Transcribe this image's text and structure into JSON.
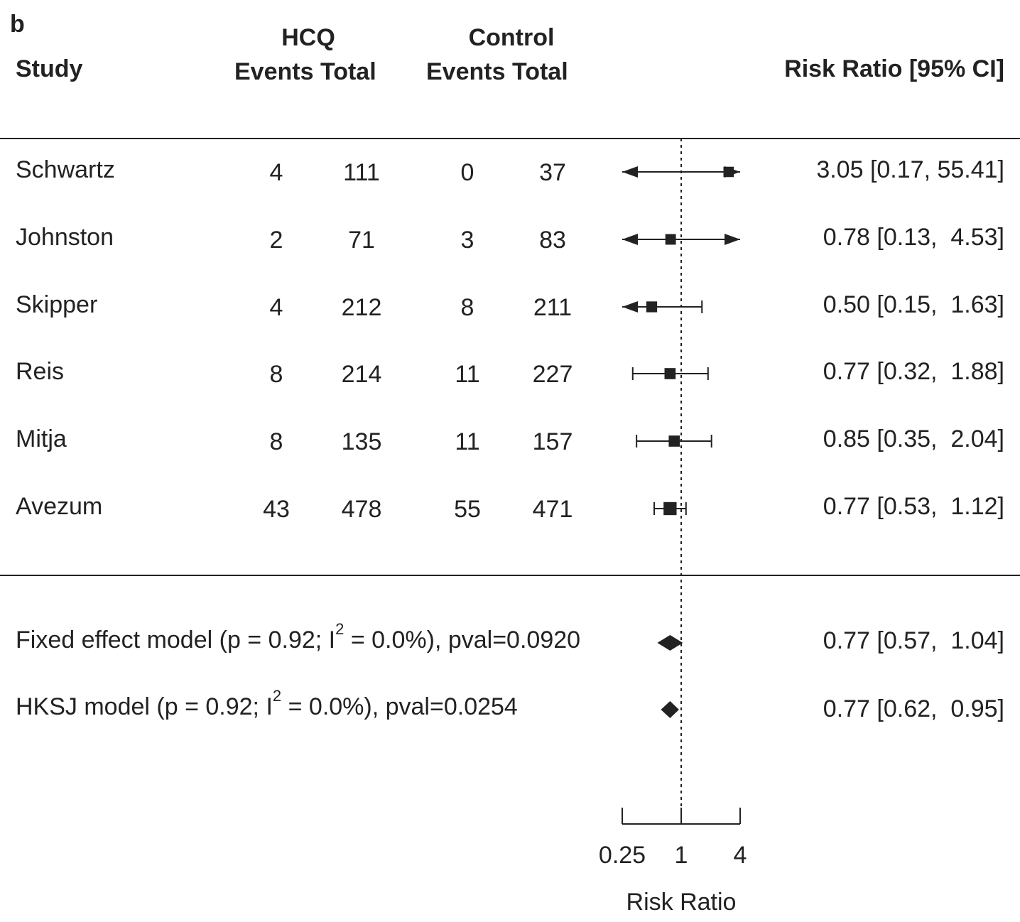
{
  "panel_label": "b",
  "headers": {
    "study": "Study",
    "hcq_group": "HCQ",
    "hcq_cols": "Events Total",
    "control_group": "Control",
    "control_cols": "Events Total",
    "effect": "Risk Ratio [95% CI]"
  },
  "rows": [
    {
      "study": "Schwartz",
      "hcq_events": "4",
      "hcq_total": "111",
      "ctrl_events": "0",
      "ctrl_total": "37",
      "ci_text": "3.05 [0.17, 55.41]"
    },
    {
      "study": "Johnston",
      "hcq_events": "2",
      "hcq_total": "71",
      "ctrl_events": "3",
      "ctrl_total": "83",
      "ci_text": "0.78 [0.13,  4.53]"
    },
    {
      "study": "Skipper",
      "hcq_events": "4",
      "hcq_total": "212",
      "ctrl_events": "8",
      "ctrl_total": "211",
      "ci_text": "0.50 [0.15,  1.63]"
    },
    {
      "study": "Reis",
      "hcq_events": "8",
      "hcq_total": "214",
      "ctrl_events": "11",
      "ctrl_total": "227",
      "ci_text": "0.77 [0.32,  1.88]"
    },
    {
      "study": "Mitja",
      "hcq_events": "8",
      "hcq_total": "135",
      "ctrl_events": "11",
      "ctrl_total": "157",
      "ci_text": "0.85 [0.35,  2.04]"
    },
    {
      "study": "Avezum",
      "hcq_events": "43",
      "hcq_total": "478",
      "ctrl_events": "55",
      "ctrl_total": "471",
      "ci_text": "0.77 [0.53,  1.12]"
    }
  ],
  "models": [
    {
      "label_a": "Fixed effect model (p = 0.92; I",
      "sup": "2",
      "label_b": " = 0.0%), pval=0.0920",
      "ci_text": "0.77 [0.57,  1.04]"
    },
    {
      "label_a": "HKSJ model (p = 0.92; I",
      "sup": "2",
      "label_b": " = 0.0%), pval=0.0254",
      "ci_text": "0.77 [0.62,  0.95]"
    }
  ],
  "chart_data": {
    "type": "forest",
    "x_scale": "log2",
    "xlim": [
      0.25,
      4
    ],
    "reference_line": 1,
    "xlabel": "Risk Ratio",
    "ticks": [
      "0.25",
      "1",
      "4"
    ],
    "tick_values": [
      0.25,
      1,
      4
    ],
    "studies": [
      {
        "name": "Schwartz",
        "rr": 3.05,
        "lower": 0.17,
        "upper": 55.41,
        "weight": 0.01
      },
      {
        "name": "Johnston",
        "rr": 0.78,
        "lower": 0.13,
        "upper": 4.53,
        "weight": 0.03
      },
      {
        "name": "Skipper",
        "rr": 0.5,
        "lower": 0.15,
        "upper": 1.63,
        "weight": 0.06
      },
      {
        "name": "Reis",
        "rr": 0.77,
        "lower": 0.32,
        "upper": 1.88,
        "weight": 0.1
      },
      {
        "name": "Mitja",
        "rr": 0.85,
        "lower": 0.35,
        "upper": 2.04,
        "weight": 0.1
      },
      {
        "name": "Avezum",
        "rr": 0.77,
        "lower": 0.53,
        "upper": 1.12,
        "weight": 0.7
      }
    ],
    "pooled": [
      {
        "name": "Fixed effect model",
        "rr": 0.77,
        "lower": 0.57,
        "upper": 1.04
      },
      {
        "name": "HKSJ model",
        "rr": 0.77,
        "lower": 0.62,
        "upper": 0.95
      }
    ],
    "colors": {
      "ink": "#222222"
    }
  }
}
